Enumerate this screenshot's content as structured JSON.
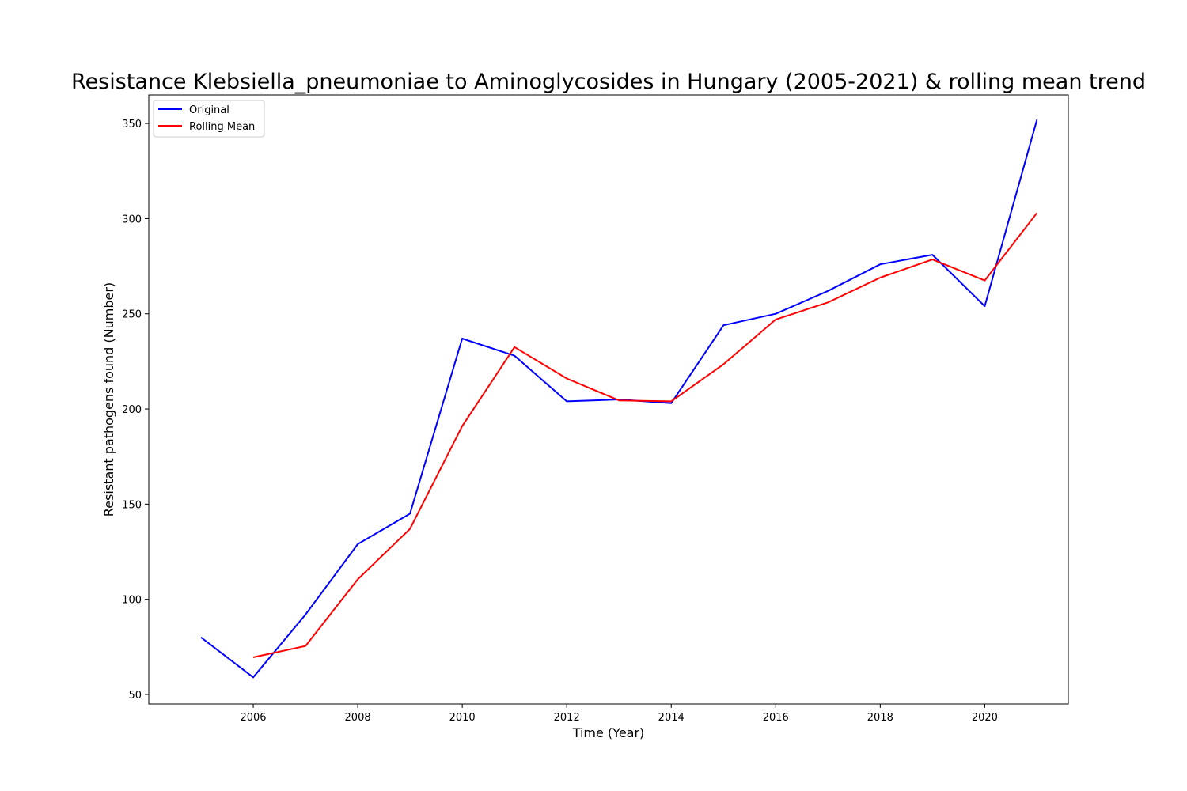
{
  "chart_data": {
    "type": "line",
    "title": "Resistance Klebsiella_pneumoniae to Aminoglycosides in Hungary (2005-2021) & rolling mean trend",
    "xlabel": "Time (Year)",
    "ylabel": "Resistant pathogens found (Number)",
    "xlim": [
      2004.0,
      2021.6
    ],
    "ylim": [
      45,
      365
    ],
    "xticks": [
      2006,
      2008,
      2010,
      2012,
      2014,
      2016,
      2018,
      2020
    ],
    "yticks": [
      50,
      100,
      150,
      200,
      250,
      300,
      350
    ],
    "grid": false,
    "legend": "top-left",
    "series": [
      {
        "name": "Original",
        "color": "#0000ff",
        "x": [
          2005,
          2006,
          2007,
          2008,
          2009,
          2010,
          2011,
          2012,
          2013,
          2014,
          2015,
          2016,
          2017,
          2018,
          2019,
          2020,
          2021
        ],
        "y": [
          80,
          59,
          92,
          129,
          145,
          237,
          228,
          204,
          205,
          203,
          244,
          250,
          262,
          276,
          281,
          254,
          352
        ]
      },
      {
        "name": "Rolling Mean",
        "color": "#ff0000",
        "x": [
          2006,
          2007,
          2008,
          2009,
          2010,
          2011,
          2012,
          2013,
          2014,
          2015,
          2016,
          2017,
          2018,
          2019,
          2020,
          2021
        ],
        "y": [
          69.5,
          75.5,
          110.5,
          137,
          191,
          232.5,
          216,
          204.5,
          204,
          223.5,
          247,
          256,
          269,
          278.5,
          267.5,
          303
        ]
      }
    ]
  }
}
